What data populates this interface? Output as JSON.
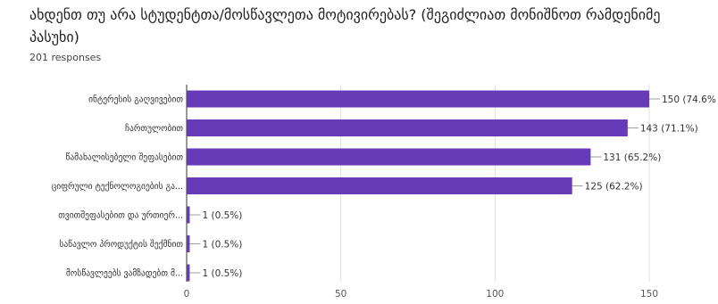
{
  "question": {
    "title": "ახდენთ თუ არა სტუდენტთა/მოსწავლეთა მოტივირებას? (შეგიძლიათ მონიშნოთ რამდენიმე პასუხი)",
    "responses": "201 responses"
  },
  "colors": {
    "bar": "#673ab7",
    "grid": "#e0e0e0",
    "axis": "#333333",
    "leader": "#9e9e9e"
  },
  "chart_data": {
    "type": "bar",
    "orientation": "horizontal",
    "categories": [
      "ინტერესის გაღვივებით",
      "ჩართულობით",
      "წამახალისებელი შეფასებით",
      "ციფრული ტექნოლოგიების გა...",
      "თვითშეფასებით და ურთიერ...",
      "საწავლო პროდუქტის შექმნით",
      "მოსწავლეებს ვამზადებთ მ..."
    ],
    "values": [
      150,
      143,
      131,
      125,
      1,
      1,
      1
    ],
    "data_labels": [
      "150 (74.6%",
      "143 (71.1%)",
      "131 (65.2%)",
      "125 (62.2%)",
      "1 (0.5%)",
      "1 (0.5%)",
      "1 (0.5%)"
    ],
    "xlim": [
      0,
      150
    ],
    "xticks": [
      0,
      50,
      100,
      150
    ],
    "grid": true
  }
}
